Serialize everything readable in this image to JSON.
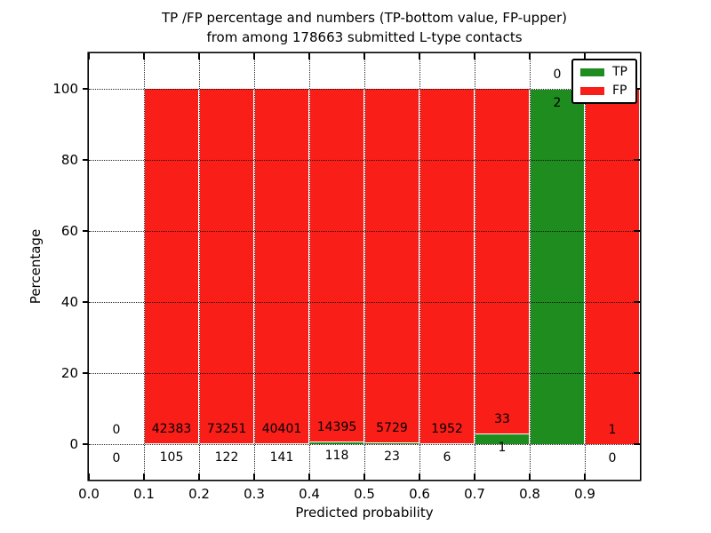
{
  "chart_data": {
    "type": "bar",
    "stacked": true,
    "normalized_to_percent": true,
    "title_line1": "TP /FP percentage and numbers (TP-bottom value, FP-upper)",
    "title_line2": "from among 178663 submitted L-type contacts",
    "xlabel": "Predicted probability",
    "ylabel": "Percentage",
    "xlim": [
      0.0,
      1.0
    ],
    "ylim": [
      -10,
      110
    ],
    "xticks": [
      0.0,
      0.1,
      0.2,
      0.3,
      0.4,
      0.5,
      0.6,
      0.7,
      0.8,
      0.9
    ],
    "xtick_labels": [
      "0.0",
      "0.1",
      "0.2",
      "0.3",
      "0.4",
      "0.5",
      "0.6",
      "0.7",
      "0.8",
      "0.9"
    ],
    "yticks": [
      0,
      20,
      40,
      60,
      80,
      100
    ],
    "ytick_labels": [
      "0",
      "20",
      "40",
      "60",
      "80",
      "100"
    ],
    "grid_style": "dotted",
    "legend_position": "upper-right",
    "bins": [
      {
        "range": [
          0.0,
          0.1
        ],
        "tp": 0,
        "fp": 0
      },
      {
        "range": [
          0.1,
          0.2
        ],
        "tp": 105,
        "fp": 42383
      },
      {
        "range": [
          0.2,
          0.3
        ],
        "tp": 122,
        "fp": 73251
      },
      {
        "range": [
          0.3,
          0.4
        ],
        "tp": 141,
        "fp": 40401
      },
      {
        "range": [
          0.4,
          0.5
        ],
        "tp": 118,
        "fp": 14395
      },
      {
        "range": [
          0.5,
          0.6
        ],
        "tp": 23,
        "fp": 5729
      },
      {
        "range": [
          0.6,
          0.7
        ],
        "tp": 6,
        "fp": 1952
      },
      {
        "range": [
          0.7,
          0.8
        ],
        "tp": 1,
        "fp": 33
      },
      {
        "range": [
          0.8,
          0.9
        ],
        "tp": 2,
        "fp": 0
      },
      {
        "range": [
          0.9,
          1.0
        ],
        "tp": 0,
        "fp": 1
      }
    ],
    "legend": {
      "items": [
        {
          "label": "TP",
          "color": "#1e8c1e"
        },
        {
          "label": "FP",
          "color": "#fa1e19"
        }
      ]
    }
  },
  "colors": {
    "tp": "#1e8c1e",
    "fp": "#fa1e19",
    "text": "#000000",
    "grid": "#000000",
    "background": "#ffffff"
  }
}
